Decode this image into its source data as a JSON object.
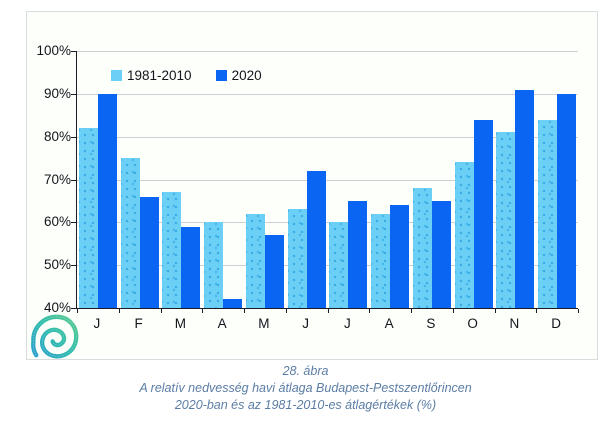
{
  "caption": {
    "line1": "28. ábra",
    "line2": "A relatív nedvesség havi átlaga Budapest-Pestszentlőrincen",
    "line3": "2020-ban és az 1981-2010-es átlagértékek (%)",
    "color": "#5b7da5"
  },
  "logo": {
    "name": "met-service-spiral-logo",
    "gradient": [
      "#2f9fd0",
      "#2fbcae",
      "#5ecb8f"
    ]
  },
  "colors": {
    "series_light": "#6bcff6",
    "series_dark": "#0a66f2",
    "gridline": "#cdd1d4",
    "axis": "#1c1c26",
    "chart_background": "#fdfffb",
    "box_border": "#d8dcde"
  },
  "chart_data": {
    "type": "bar",
    "title": "",
    "xlabel": "",
    "ylabel": "",
    "categories": [
      "J",
      "F",
      "M",
      "A",
      "M",
      "J",
      "J",
      "A",
      "S",
      "O",
      "N",
      "D"
    ],
    "series": [
      {
        "name": "1981-2010",
        "color": "#6bcff6",
        "values": [
          82,
          75,
          67,
          60,
          62,
          63,
          60,
          62,
          68,
          74,
          81,
          84
        ]
      },
      {
        "name": "2020",
        "color": "#0a66f2",
        "values": [
          90,
          66,
          59,
          42,
          57,
          72,
          65,
          64,
          65,
          84,
          91,
          90
        ]
      }
    ],
    "ylim": [
      40,
      100
    ],
    "y_ticks": [
      "100%",
      "90%",
      "80%",
      "70%",
      "60%",
      "50%",
      "40%"
    ],
    "grid": "horizontal",
    "legend_position": "top-left-inside",
    "unit": "%"
  }
}
